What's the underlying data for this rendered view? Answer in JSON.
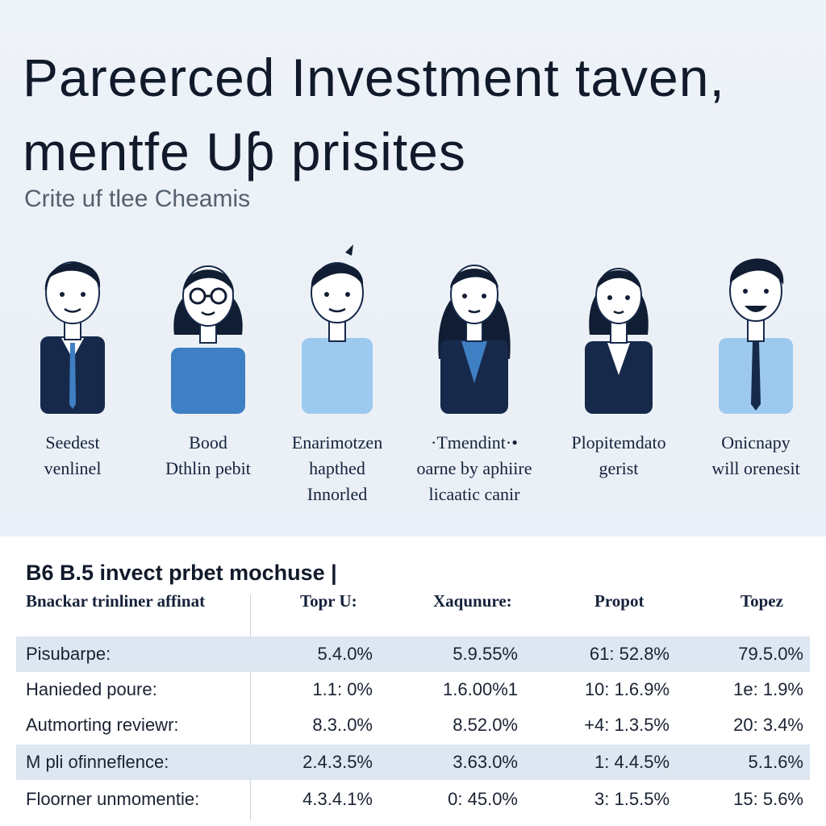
{
  "title": {
    "line1": "Pareerced Investment taven,",
    "line2": "mentfe Uƥ prisites"
  },
  "subtitle": "Crite uf tlee Cheamis",
  "colors": {
    "navy": "#16294a",
    "blue": "#3f7fc4",
    "light_blue": "#9dc9ef",
    "skin": "#ffffff",
    "hair": "#111d33",
    "row_shade": "#dde7f1"
  },
  "people": [
    {
      "icon": "man-suit-avatar-icon",
      "caption": [
        "Seedest",
        "venlinel"
      ]
    },
    {
      "icon": "woman-glasses-avatar-icon",
      "caption": [
        "Bood",
        "Dthlin pebit"
      ]
    },
    {
      "icon": "man-casual-avatar-icon",
      "caption": [
        "Enarimotzen",
        "hapthed",
        "Innorled"
      ]
    },
    {
      "icon": "woman-long-hair-avatar-icon",
      "caption": [
        "·Tmendint·•",
        "oarne by aphiire",
        "licaatic canir"
      ]
    },
    {
      "icon": "woman-blazer-avatar-icon",
      "caption": [
        "Plopitemdato",
        "gerist"
      ]
    },
    {
      "icon": "man-tie-avatar-icon",
      "caption": [
        "Onicnapy",
        "will orenesit"
      ]
    }
  ],
  "table": {
    "title": "B6 B.5 invect prbet mochuse |",
    "headers": [
      "Bnackar trinliner affinat",
      "Topr U:",
      "Xaqunure:",
      "Propot",
      "Topez"
    ],
    "rows": [
      {
        "label": "Pisubarpe:",
        "values": [
          "5.4.0%",
          "5.9.55%",
          "61: 52.8%",
          "79.5.0%"
        ],
        "shaded": true
      },
      {
        "label": "Hanieded poure:",
        "values": [
          "1.1: 0%",
          "1.6.00%1",
          "10: 1.6.9%",
          "1e: 1.9%"
        ],
        "shaded": false
      },
      {
        "label": "Autmorting reviewr:",
        "values": [
          "8.3..0%",
          "8.52.0%",
          "+4: 1.3.5%",
          "20: 3.4%"
        ],
        "shaded": false
      },
      {
        "label": "M pli ofinneflence:",
        "values": [
          "2.4.3.5%",
          "3.63.0%",
          "1: 4.4.5%",
          "5.1.6%"
        ],
        "shaded": true
      },
      {
        "label": "Floorner unmomentie:",
        "values": [
          "4.3.4.1%",
          "0: 45.0%",
          "3: 1.5.5%",
          "15: 5.6%"
        ],
        "shaded": false
      }
    ]
  }
}
